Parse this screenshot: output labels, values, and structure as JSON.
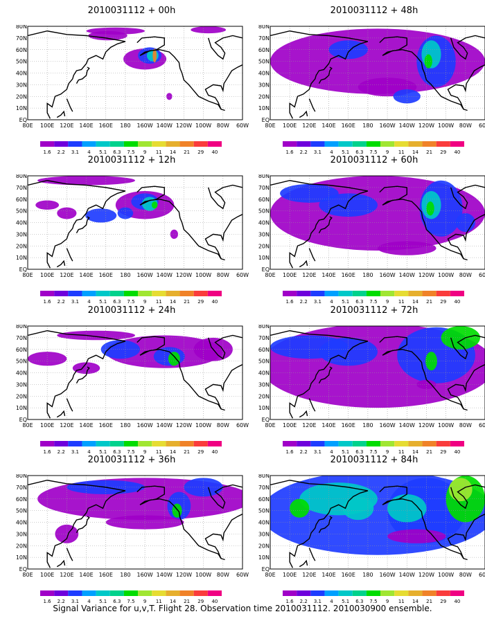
{
  "caption": "Signal Variance for u,v,T. Flight 28. Observation time 2010031112. 2010030900 ensemble.",
  "lat_labels": [
    "80N",
    "70N",
    "60N",
    "50N",
    "40N",
    "30N",
    "20N",
    "10N",
    "EQ"
  ],
  "lon_labels": [
    "80E",
    "100E",
    "120E",
    "140E",
    "160E",
    "180",
    "160W",
    "140W",
    "120W",
    "100W",
    "80W",
    "60W"
  ],
  "colorbar": {
    "levels": [
      "1.6",
      "2.2",
      "3.1",
      "4",
      "5.1",
      "6.3",
      "7.5",
      "9",
      "11",
      "14",
      "21",
      "29",
      "40"
    ],
    "colors": [
      "#a000c8",
      "#6e00dc",
      "#1e3cff",
      "#00a0ff",
      "#00c8c8",
      "#00d28c",
      "#00dc00",
      "#a0e632",
      "#e6dc32",
      "#e6af2d",
      "#f08228",
      "#fa3c3c",
      "#f00082"
    ]
  },
  "panels": [
    {
      "title": "2010031112 + 00h",
      "col": 0,
      "row": 0,
      "level": 0
    },
    {
      "title": "2010031112 + 12h",
      "col": 0,
      "row": 1,
      "level": 1
    },
    {
      "title": "2010031112 + 24h",
      "col": 0,
      "row": 2,
      "level": 2
    },
    {
      "title": "2010031112 + 36h",
      "col": 0,
      "row": 3,
      "level": 3
    },
    {
      "title": "2010031112 + 48h",
      "col": 1,
      "row": 0,
      "level": 4
    },
    {
      "title": "2010031112 + 60h",
      "col": 1,
      "row": 1,
      "level": 5
    },
    {
      "title": "2010031112 + 72h",
      "col": 1,
      "row": 2,
      "level": 6
    },
    {
      "title": "2010031112 + 84h",
      "col": 1,
      "row": 3,
      "level": 7
    }
  ]
}
